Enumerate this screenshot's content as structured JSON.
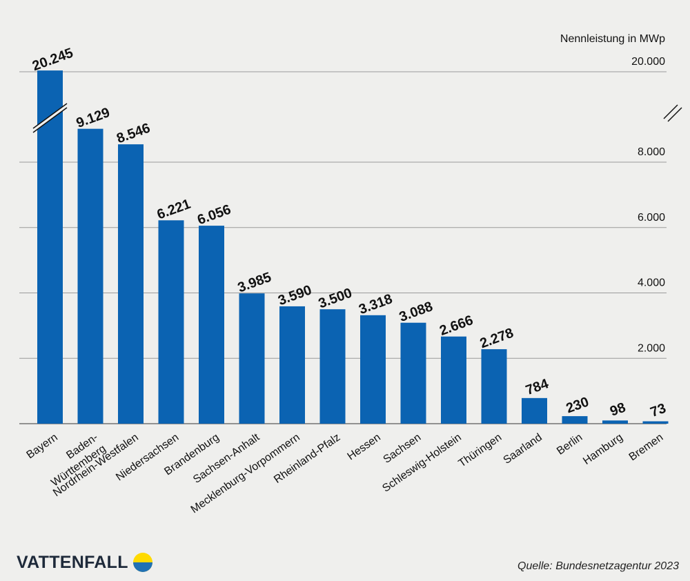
{
  "chart_data": {
    "type": "bar",
    "ylabel": "Nennleistung in MWp",
    "axis_break": [
      8000,
      20000
    ],
    "yticks": [
      "2.000",
      "4.000",
      "6.000",
      "8.000",
      "20.000"
    ],
    "ytick_values": [
      2000,
      4000,
      6000,
      8000,
      20000
    ],
    "grid": true,
    "bar_color": "#0b63b2",
    "categories": [
      "Bayern",
      "Baden-\nWürttemberg",
      "Nordrhein-Westfalen",
      "Niedersachsen",
      "Brandenburg",
      "Sachsen-Anhalt",
      "Mecklenburg-Vorpommern",
      "Rheinland-Pfalz",
      "Hessen",
      "Sachsen",
      "Schleswig-Holstein",
      "Thüringen",
      "Saarland",
      "Berlin",
      "Hamburg",
      "Bremen"
    ],
    "values": [
      20245,
      9129,
      8546,
      6221,
      6056,
      3985,
      3590,
      3500,
      3318,
      3088,
      2666,
      2278,
      784,
      230,
      98,
      73
    ],
    "value_labels": [
      "20.245",
      "9.129",
      "8.546",
      "6.221",
      "6.056",
      "3.985",
      "3.590",
      "3.500",
      "3.318",
      "3.088",
      "2.666",
      "2.278",
      "784",
      "230",
      "98",
      "73"
    ]
  },
  "brand": {
    "name": "VATTENFALL",
    "logo_colors": [
      "#ffda00",
      "#2071b5"
    ]
  },
  "source": "Quelle: Bundesnetzagentur 2023"
}
